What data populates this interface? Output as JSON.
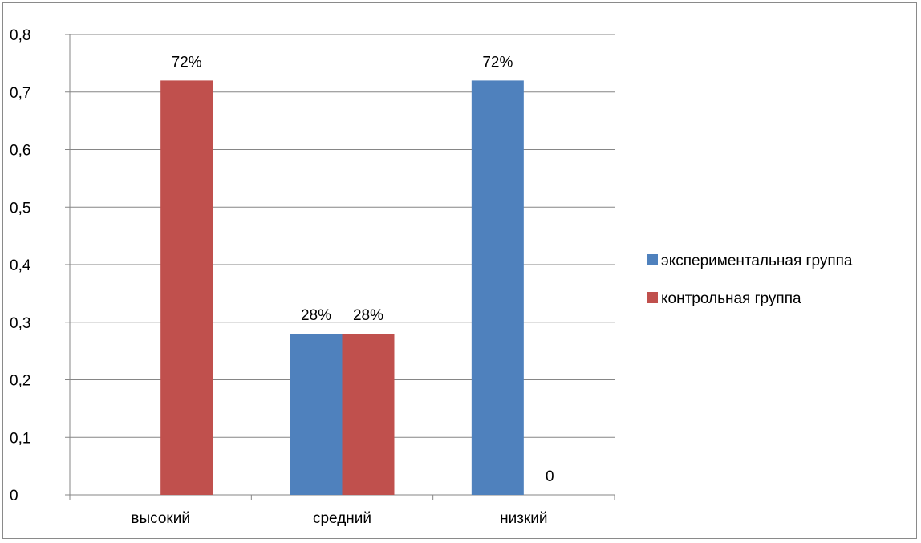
{
  "chart_data": {
    "type": "bar",
    "categories": [
      "высокий",
      "средний",
      "низкий"
    ],
    "series": [
      {
        "name": "экспериментальная группа",
        "color": "#4F81BD",
        "values": [
          0,
          0.28,
          0.72
        ],
        "labels": [
          "",
          "28%",
          "72%"
        ]
      },
      {
        "name": "контрольная группа",
        "color": "#C0504D",
        "values": [
          0.72,
          0.28,
          0
        ],
        "labels": [
          "72%",
          "28%",
          "0"
        ]
      }
    ],
    "ylim": [
      0,
      0.8
    ],
    "yticks": [
      "0",
      "0,1",
      "0,2",
      "0,3",
      "0,4",
      "0,5",
      "0,6",
      "0,7",
      "0,8"
    ],
    "grid": true,
    "legend_position": "right",
    "title": "",
    "xlabel": "",
    "ylabel": ""
  }
}
